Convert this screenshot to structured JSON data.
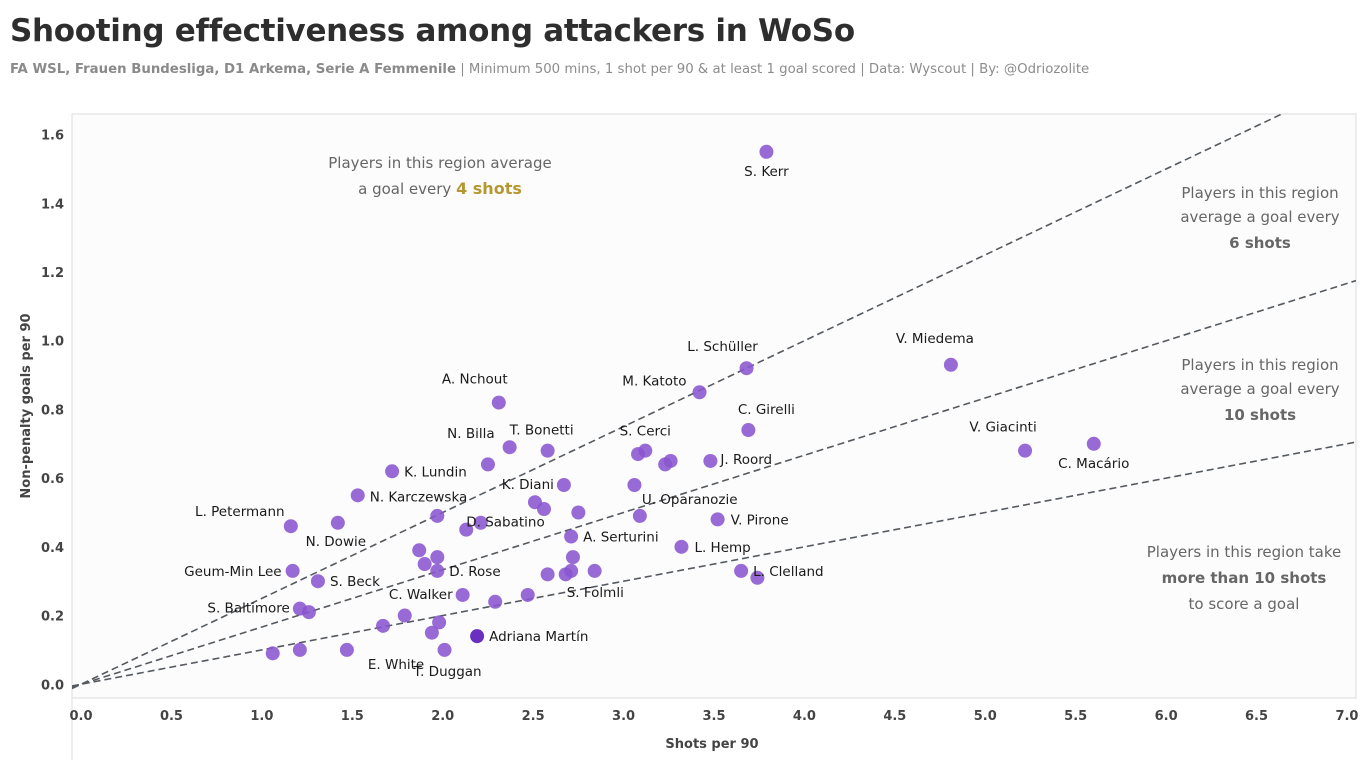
{
  "header": {
    "title": "Shooting effectiveness among attackers in WoSo",
    "subtitle_bold": "FA WSL, Frauen Bundesliga, D1 Arkema, Serie A Femmenile",
    "subtitle_rest": " | Minimum 500 mins, 1 shot per 90 & at least 1 goal scored | Data: Wyscout | By: @Odriozolite"
  },
  "colors": {
    "point": "#8a55cf",
    "highlight_point": "#6a2fc0",
    "line": "#555a60",
    "gold": "#b5982f",
    "red": "#e0525d",
    "plot_bg": "#fcfcfc"
  },
  "chart_data": {
    "type": "scatter",
    "xlabel": "Shots per 90",
    "ylabel": "Non-penalty goals per 90",
    "xlim": [
      -0.05,
      7.05
    ],
    "ylim": [
      -0.04,
      1.66
    ],
    "xticks": [
      "0.0",
      "0.5",
      "1.0",
      "1.5",
      "2.0",
      "2.5",
      "3.0",
      "3.5",
      "4.0",
      "4.5",
      "5.0",
      "5.5",
      "6.0",
      "6.5",
      "7.0"
    ],
    "yticks": [
      "0.0",
      "0.2",
      "0.4",
      "0.6",
      "0.8",
      "1.0",
      "1.2",
      "1.4",
      "1.6"
    ],
    "grid": false,
    "reference_lines": [
      {
        "shots_per_goal": 4
      },
      {
        "shots_per_goal": 6
      },
      {
        "shots_per_goal": 10
      }
    ],
    "annotations": [
      {
        "lines": [
          "Players in this region average",
          "a goal every "
        ],
        "emph": "4 shots",
        "emph_color": "gold"
      },
      {
        "lines": [
          "Players in this region",
          "average a goal every"
        ],
        "emph": "6 shots",
        "emph_color": "gold"
      },
      {
        "lines": [
          "Players in this region",
          "average a goal every"
        ],
        "emph": "10 shots",
        "emph_color": "gold"
      },
      {
        "lines": [
          "Players in this region take",
          "to score a goal"
        ],
        "emph": "more than 10 shots",
        "emph_color": "red"
      }
    ],
    "points": [
      {
        "label": "S. Kerr",
        "x": 3.79,
        "y": 1.55
      },
      {
        "label": "V. Miedema",
        "x": 4.81,
        "y": 0.93
      },
      {
        "label": "L. Schüller",
        "x": 3.68,
        "y": 0.92
      },
      {
        "label": "M. Katoto",
        "x": 3.42,
        "y": 0.85
      },
      {
        "label": "A. Nchout",
        "x": 2.31,
        "y": 0.82
      },
      {
        "label": "C. Girelli",
        "x": 3.69,
        "y": 0.74
      },
      {
        "label": "V. Giacinti",
        "x": 5.22,
        "y": 0.68
      },
      {
        "label": "C. Macário",
        "x": 5.6,
        "y": 0.7
      },
      {
        "label": "N. Billa",
        "x": 2.37,
        "y": 0.69
      },
      {
        "label": "T. Bonetti",
        "x": 2.58,
        "y": 0.68
      },
      {
        "label": "S. Cerci",
        "x": 3.12,
        "y": 0.68
      },
      {
        "label": "",
        "x": 3.08,
        "y": 0.67
      },
      {
        "label": "J. Roord",
        "x": 3.48,
        "y": 0.65
      },
      {
        "label": "",
        "x": 3.26,
        "y": 0.65
      },
      {
        "label": "",
        "x": 3.23,
        "y": 0.64
      },
      {
        "label": "",
        "x": 2.25,
        "y": 0.64
      },
      {
        "label": "K. Lundin",
        "x": 1.72,
        "y": 0.62
      },
      {
        "label": "K. Diani",
        "x": 2.67,
        "y": 0.58
      },
      {
        "label": "",
        "x": 3.06,
        "y": 0.58
      },
      {
        "label": "N. Karczewska",
        "x": 1.53,
        "y": 0.55
      },
      {
        "label": "",
        "x": 2.51,
        "y": 0.53
      },
      {
        "label": "",
        "x": 2.56,
        "y": 0.51
      },
      {
        "label": "",
        "x": 2.75,
        "y": 0.5
      },
      {
        "label": "U. Oparanozie",
        "x": 3.09,
        "y": 0.49
      },
      {
        "label": "",
        "x": 1.97,
        "y": 0.49
      },
      {
        "label": "V. Pirone",
        "x": 3.52,
        "y": 0.48
      },
      {
        "label": "",
        "x": 2.21,
        "y": 0.47
      },
      {
        "label": "N. Dowie",
        "x": 1.42,
        "y": 0.47
      },
      {
        "label": "L. Petermann",
        "x": 1.16,
        "y": 0.46
      },
      {
        "label": "",
        "x": 2.13,
        "y": 0.45
      },
      {
        "label": "A. Serturini",
        "x": 2.71,
        "y": 0.43
      },
      {
        "label": "L. Hemp",
        "x": 3.32,
        "y": 0.4
      },
      {
        "label": "D. Sabatino",
        "x": 1.87,
        "y": 0.39
      },
      {
        "label": "",
        "x": 1.97,
        "y": 0.37
      },
      {
        "label": "",
        "x": 2.72,
        "y": 0.37
      },
      {
        "label": "",
        "x": 1.9,
        "y": 0.35
      },
      {
        "label": "D. Rose",
        "x": 1.97,
        "y": 0.33
      },
      {
        "label": "Geum-Min Lee",
        "x": 1.17,
        "y": 0.33
      },
      {
        "label": "L. Clelland",
        "x": 3.65,
        "y": 0.33
      },
      {
        "label": "",
        "x": 2.71,
        "y": 0.33
      },
      {
        "label": "",
        "x": 2.84,
        "y": 0.33
      },
      {
        "label": "",
        "x": 2.68,
        "y": 0.32
      },
      {
        "label": "",
        "x": 2.58,
        "y": 0.32
      },
      {
        "label": "",
        "x": 3.74,
        "y": 0.31
      },
      {
        "label": "S. Beck",
        "x": 1.31,
        "y": 0.3
      },
      {
        "label": "C. Walker",
        "x": 2.11,
        "y": 0.26
      },
      {
        "label": "S. Folmli",
        "x": 2.47,
        "y": 0.26
      },
      {
        "label": "",
        "x": 2.29,
        "y": 0.24
      },
      {
        "label": "S. Baltimore",
        "x": 1.21,
        "y": 0.22
      },
      {
        "label": "",
        "x": 1.26,
        "y": 0.21
      },
      {
        "label": "",
        "x": 1.79,
        "y": 0.2
      },
      {
        "label": "",
        "x": 1.98,
        "y": 0.18
      },
      {
        "label": "",
        "x": 1.67,
        "y": 0.17
      },
      {
        "label": "",
        "x": 1.94,
        "y": 0.15
      },
      {
        "label": "Adriana Martín",
        "x": 2.19,
        "y": 0.14,
        "highlight": true
      },
      {
        "label": "E. White",
        "x": 1.47,
        "y": 0.1
      },
      {
        "label": "",
        "x": 1.21,
        "y": 0.1
      },
      {
        "label": "",
        "x": 1.06,
        "y": 0.09
      },
      {
        "label": "T. Duggan",
        "x": 2.01,
        "y": 0.1
      }
    ]
  }
}
